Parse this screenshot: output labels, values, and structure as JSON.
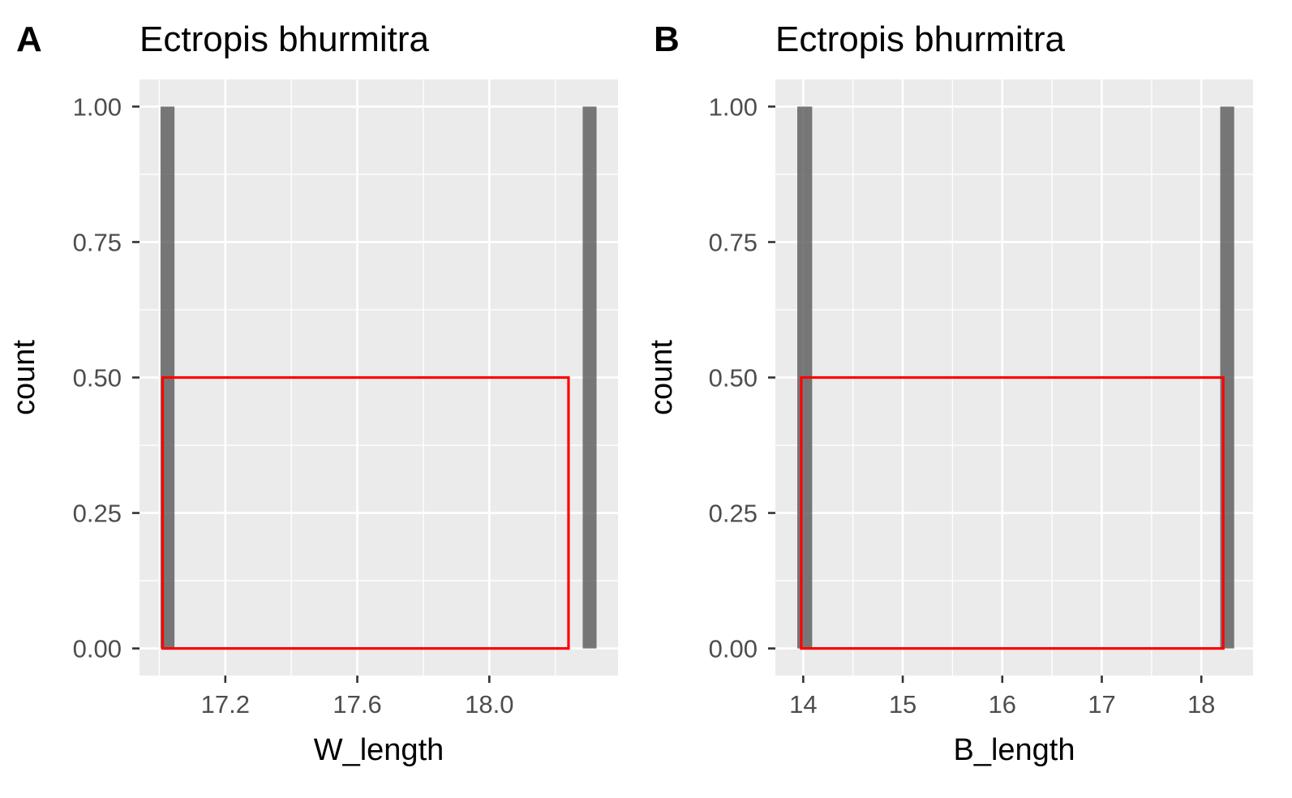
{
  "chart_data": [
    {
      "type": "bar",
      "panel_label": "A",
      "title": "Ectropis bhurmitra",
      "xlabel": "W_length",
      "ylabel": "count",
      "xlim": [
        16.94,
        18.39
      ],
      "ylim": [
        -0.05,
        1.05
      ],
      "x_ticks": [
        {
          "value": 17.2,
          "label": "17.2"
        },
        {
          "value": 17.6,
          "label": "17.6"
        },
        {
          "value": 18.0,
          "label": "18.0"
        }
      ],
      "x_minor": [
        17.0,
        17.4,
        17.8,
        18.2
      ],
      "y_ticks": [
        {
          "value": 0,
          "label": "0.00"
        },
        {
          "value": 0.25,
          "label": "0.25"
        },
        {
          "value": 0.5,
          "label": "0.50"
        },
        {
          "value": 0.75,
          "label": "0.75"
        },
        {
          "value": 1.0,
          "label": "1.00"
        }
      ],
      "y_minor": [
        0.125,
        0.375,
        0.625,
        0.875
      ],
      "bars": [
        {
          "x0": 17.004,
          "x1": 17.046,
          "count": 1
        },
        {
          "x0": 18.283,
          "x1": 18.325,
          "count": 1
        }
      ],
      "highlight_box": {
        "x0": 17.01,
        "x1": 18.24,
        "y0": 0,
        "y1": 0.5,
        "color": "#ff0000"
      },
      "grid": true,
      "background": "#ebebeb",
      "bar_color": "#595959"
    },
    {
      "type": "bar",
      "panel_label": "B",
      "title": "Ectropis bhurmitra",
      "xlabel": "B_length",
      "ylabel": "count",
      "xlim": [
        13.72,
        18.52
      ],
      "ylim": [
        -0.05,
        1.05
      ],
      "x_ticks": [
        {
          "value": 14,
          "label": "14"
        },
        {
          "value": 15,
          "label": "15"
        },
        {
          "value": 16,
          "label": "16"
        },
        {
          "value": 17,
          "label": "17"
        },
        {
          "value": 18,
          "label": "18"
        }
      ],
      "x_minor": [
        14.5,
        15.5,
        16.5,
        17.5
      ],
      "y_ticks": [
        {
          "value": 0,
          "label": "0.00"
        },
        {
          "value": 0.25,
          "label": "0.25"
        },
        {
          "value": 0.5,
          "label": "0.50"
        },
        {
          "value": 0.75,
          "label": "0.75"
        },
        {
          "value": 1.0,
          "label": "1.00"
        }
      ],
      "y_minor": [
        0.125,
        0.375,
        0.625,
        0.875
      ],
      "bars": [
        {
          "x0": 13.94,
          "x1": 14.09,
          "count": 1
        },
        {
          "x0": 18.19,
          "x1": 18.33,
          "count": 1
        }
      ],
      "highlight_box": {
        "x0": 13.98,
        "x1": 18.22,
        "y0": 0,
        "y1": 0.5,
        "color": "#ff0000"
      },
      "grid": true,
      "background": "#ebebeb",
      "bar_color": "#595959"
    }
  ]
}
